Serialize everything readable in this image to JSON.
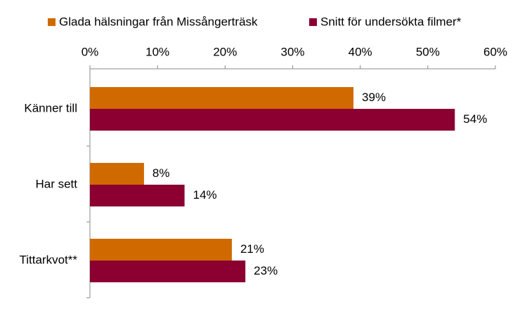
{
  "chart_data": {
    "type": "hbar",
    "categories": [
      "Känner till",
      "Har sett",
      "Tittarkvot**"
    ],
    "series": [
      {
        "name": "Glada hälsningar från Missångerträsk",
        "color": "#d06a00",
        "values": [
          39,
          8,
          21
        ],
        "value_labels": [
          "39%",
          "8%",
          "21%"
        ]
      },
      {
        "name": "Snitt för undersökta filmer*",
        "color": "#8b0030",
        "values": [
          54,
          14,
          23
        ],
        "value_labels": [
          "54%",
          "14%",
          "23%"
        ]
      }
    ],
    "xlim": [
      0,
      60
    ],
    "xticks": [
      {
        "value": 0,
        "label": "0%"
      },
      {
        "value": 10,
        "label": "10%"
      },
      {
        "value": 20,
        "label": "20%"
      },
      {
        "value": 30,
        "label": "30%"
      },
      {
        "value": 40,
        "label": "40%"
      },
      {
        "value": 50,
        "label": "50%"
      },
      {
        "value": 60,
        "label": "60%"
      }
    ],
    "legend": "top"
  }
}
